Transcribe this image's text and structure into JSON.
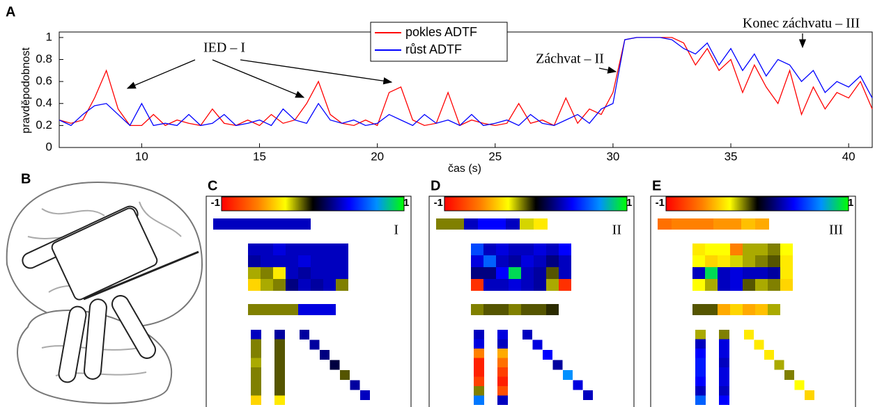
{
  "chart_data": {
    "type": "line",
    "panel_label": "A",
    "xlabel": "čas (s)",
    "ylabel": "pravděpodobnost",
    "xlim": [
      6.5,
      41
    ],
    "ylim": [
      0,
      1.05
    ],
    "xticks": [
      10,
      15,
      20,
      25,
      30,
      35,
      40
    ],
    "yticks": [
      0,
      0.2,
      0.4,
      0.6,
      0.8,
      1
    ],
    "legend": "top",
    "annotations": [
      "IED – I",
      "Záchvat – II",
      "Konec záchvatu – III"
    ],
    "x": [
      6.5,
      7,
      7.5,
      8,
      8.5,
      9,
      9.5,
      10,
      10.5,
      11,
      11.5,
      12,
      12.5,
      13,
      13.5,
      14,
      14.5,
      15,
      15.5,
      16,
      16.5,
      17,
      17.5,
      18,
      18.5,
      19,
      19.5,
      20,
      20.5,
      21,
      21.5,
      22,
      22.5,
      23,
      23.5,
      24,
      24.5,
      25,
      25.5,
      26,
      26.5,
      27,
      27.5,
      28,
      28.5,
      29,
      29.5,
      30,
      30.5,
      31,
      31.5,
      32,
      32.5,
      33,
      33.5,
      34,
      34.5,
      35,
      35.5,
      36,
      36.5,
      37,
      37.5,
      38,
      38.5,
      39,
      39.5,
      40,
      40.5,
      41
    ],
    "series": [
      {
        "name": "pokles ADTF",
        "color": "#ff0000",
        "values": [
          0.25,
          0.22,
          0.25,
          0.45,
          0.7,
          0.35,
          0.2,
          0.2,
          0.3,
          0.2,
          0.25,
          0.22,
          0.2,
          0.35,
          0.22,
          0.2,
          0.25,
          0.2,
          0.3,
          0.22,
          0.25,
          0.4,
          0.6,
          0.3,
          0.22,
          0.2,
          0.25,
          0.2,
          0.5,
          0.55,
          0.25,
          0.2,
          0.22,
          0.5,
          0.2,
          0.25,
          0.22,
          0.2,
          0.22,
          0.4,
          0.22,
          0.25,
          0.2,
          0.45,
          0.22,
          0.35,
          0.3,
          0.5,
          0.98,
          1,
          1,
          1,
          1,
          0.95,
          0.75,
          0.9,
          0.7,
          0.8,
          0.5,
          0.75,
          0.55,
          0.4,
          0.7,
          0.3,
          0.55,
          0.35,
          0.5,
          0.45,
          0.6,
          0.35
        ]
      },
      {
        "name": "růst ADTF",
        "color": "#0000ff",
        "values": [
          0.25,
          0.2,
          0.3,
          0.38,
          0.4,
          0.3,
          0.2,
          0.4,
          0.2,
          0.22,
          0.2,
          0.3,
          0.2,
          0.22,
          0.3,
          0.2,
          0.22,
          0.25,
          0.2,
          0.35,
          0.25,
          0.22,
          0.4,
          0.25,
          0.22,
          0.25,
          0.2,
          0.22,
          0.3,
          0.25,
          0.2,
          0.3,
          0.22,
          0.25,
          0.2,
          0.3,
          0.2,
          0.22,
          0.25,
          0.2,
          0.3,
          0.22,
          0.2,
          0.25,
          0.3,
          0.22,
          0.35,
          0.4,
          0.98,
          1,
          1,
          1,
          0.98,
          0.9,
          0.85,
          0.95,
          0.75,
          0.9,
          0.7,
          0.85,
          0.65,
          0.8,
          0.75,
          0.6,
          0.7,
          0.5,
          0.6,
          0.55,
          0.65,
          0.45
        ]
      }
    ]
  },
  "brain_label": "B",
  "panels": [
    {
      "label": "C",
      "numeral": "I",
      "colorbar_ticks": [
        -1,
        1
      ],
      "top_strip": [
        0.3,
        0.3,
        0.3,
        0.3,
        0.3,
        0.3,
        0.3
      ],
      "grid": [
        [
          0.3,
          0.3,
          0.35,
          0.3,
          0.3,
          0.3,
          0.3,
          0.3
        ],
        [
          0.25,
          0.3,
          0.3,
          0.3,
          0.35,
          0.3,
          0.3,
          0.3
        ],
        [
          -0.2,
          -0.15,
          -0.35,
          0.3,
          0.25,
          0.3,
          0.3,
          0.3
        ],
        [
          -0.4,
          -0.2,
          -0.15,
          0.2,
          0.3,
          0.25,
          0.3,
          -0.15
        ]
      ],
      "strip": [
        -0.15,
        -0.15,
        -0.15,
        -0.15,
        0.35,
        0.35,
        0.35
      ],
      "col_left": [
        0.3,
        -0.15,
        -0.15,
        -0.2,
        -0.15,
        -0.15,
        -0.15,
        -0.4
      ],
      "col_right": [
        0.25,
        -0.1,
        -0.1,
        -0.1,
        -0.1,
        -0.1,
        -0.1,
        -0.35
      ],
      "diagonal": [
        0.25,
        0.25,
        0.2,
        0.1,
        -0.1,
        0.25,
        0.3
      ]
    },
    {
      "label": "D",
      "numeral": "II",
      "colorbar_ticks": [
        -1,
        1
      ],
      "top_strip": [
        -0.15,
        -0.15,
        0.3,
        0.4,
        0.4,
        0.3,
        -0.25,
        -0.35
      ],
      "grid": [
        [
          0.55,
          0.3,
          0.35,
          0.3,
          0.3,
          0.35,
          0.3,
          0.4
        ],
        [
          0.35,
          0.6,
          0.3,
          0.25,
          0.35,
          0.3,
          0.2,
          0.3
        ],
        [
          0.2,
          0.2,
          0.4,
          0.9,
          0.3,
          0.25,
          -0.1,
          0.3
        ],
        [
          -0.85,
          0.3,
          0.3,
          0.35,
          0.3,
          0.25,
          -0.2,
          -0.85
        ]
      ],
      "strip": [
        -0.15,
        -0.1,
        -0.1,
        -0.15,
        -0.1,
        -0.1,
        -0.05
      ],
      "col_left": [
        0.3,
        0.35,
        -0.6,
        -0.9,
        -0.9,
        -0.8,
        -0.15,
        0.65
      ],
      "col_right": [
        0.35,
        0.3,
        -0.5,
        -0.65,
        -0.8,
        -0.9,
        -0.75,
        0.3
      ],
      "diagonal": [
        0.3,
        0.35,
        0.4,
        0.25,
        0.7,
        0.35,
        0.3
      ]
    },
    {
      "label": "E",
      "numeral": "III",
      "colorbar_ticks": [
        -1,
        1
      ],
      "top_strip": [
        -0.65,
        -0.6,
        -0.6,
        -0.6,
        -0.55,
        -0.55,
        -0.45,
        -0.5
      ],
      "grid": [
        [
          -0.35,
          -0.3,
          -0.3,
          -0.6,
          -0.2,
          -0.2,
          -0.15,
          -0.3
        ],
        [
          -0.3,
          -0.4,
          -0.35,
          -0.25,
          -0.2,
          -0.15,
          -0.1,
          -0.35
        ],
        [
          0.3,
          0.9,
          0.3,
          0.35,
          0.3,
          0.3,
          0.25,
          -0.35
        ],
        [
          -0.3,
          -0.2,
          0.3,
          0.35,
          -0.1,
          -0.2,
          -0.15,
          -0.4
        ]
      ],
      "strip": [
        -0.1,
        -0.1,
        -0.5,
        -0.4,
        -0.5,
        -0.45,
        -0.2
      ],
      "col_left": [
        -0.2,
        0.3,
        0.4,
        0.45,
        0.45,
        0.4,
        0.3,
        0.6
      ],
      "col_right": [
        -0.15,
        0.35,
        0.35,
        0.3,
        0.35,
        0.35,
        0.3,
        0.4
      ],
      "diagonal": [
        -0.35,
        -0.35,
        -0.35,
        -0.2,
        -0.15,
        -0.3,
        -0.4
      ]
    }
  ]
}
